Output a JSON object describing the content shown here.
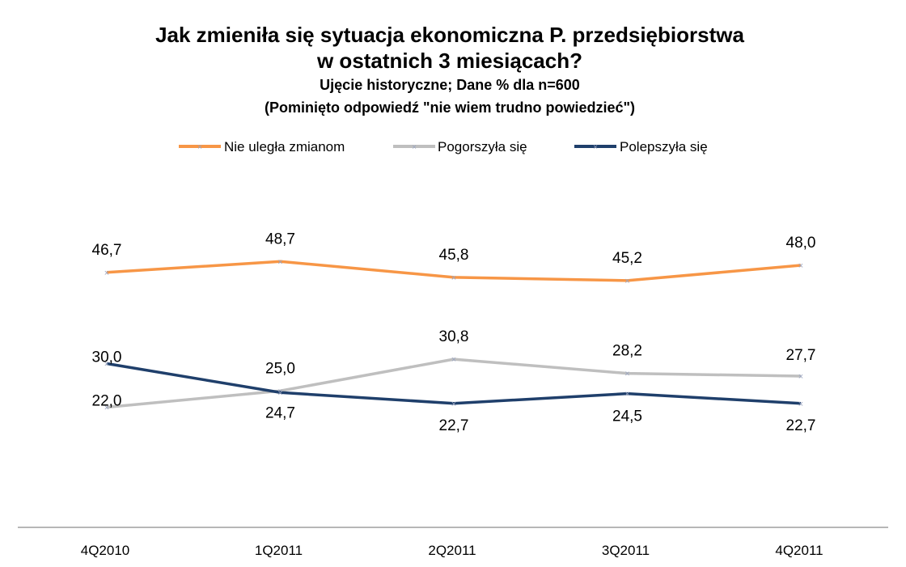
{
  "chart_data": {
    "type": "line",
    "title_line1": "Jak zmieniła się sytuacja ekonomiczna P. przedsiębiorstwa",
    "title_line2": "w ostatnich 3 miesiącach?",
    "subtitle_line1": "Ujęcie historyczne; Dane % dla n=600",
    "subtitle_line2": "(Pominięto odpowiedź \"nie wiem trudno powiedzieć\")",
    "categories": [
      "4Q2010",
      "1Q2011",
      "2Q2011",
      "3Q2011",
      "4Q2011"
    ],
    "series": [
      {
        "name": "Nie uległa zmianom",
        "color": "#F79646",
        "values": [
          46.7,
          48.7,
          45.8,
          45.2,
          48.0
        ],
        "labels": [
          "46,7",
          "48,7",
          "45,8",
          "45,2",
          "48,0"
        ]
      },
      {
        "name": "Pogorszyła się",
        "color": "#BFBFBF",
        "values": [
          22.0,
          25.0,
          30.8,
          28.2,
          27.7
        ],
        "labels": [
          "22,0",
          "25,0",
          "30,8",
          "28,2",
          "27,7"
        ]
      },
      {
        "name": "Polepszyła się",
        "color": "#1F3F6B",
        "values": [
          30.0,
          24.7,
          22.7,
          24.5,
          22.7
        ],
        "labels": [
          "30,0",
          "24,7",
          "22,7",
          "24,5",
          "22,7"
        ]
      }
    ],
    "xlabel": "",
    "ylabel": "",
    "ylim": [
      0,
      70
    ],
    "grid": false,
    "legend_position": "top"
  }
}
